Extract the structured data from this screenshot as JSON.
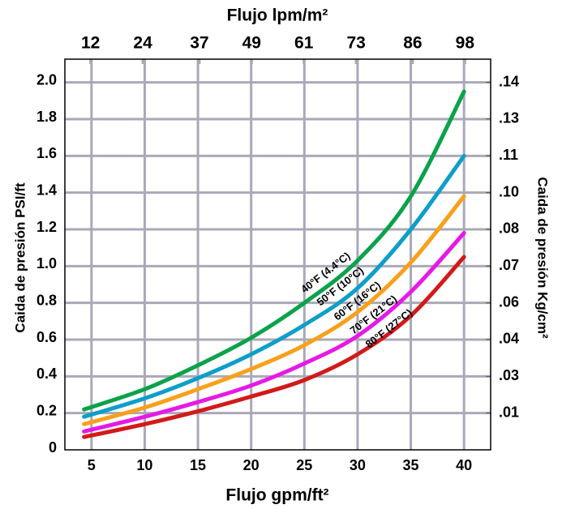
{
  "chart_data": {
    "type": "line",
    "xlabel": "Flujo gpm/ft²",
    "x2label": "Flujo lpm/m²",
    "ylabel": "Caida de presión PSI/ft",
    "y2label": "Caida de presión Kg/cm²",
    "x": [
      4.3,
      10,
      15,
      20,
      25,
      30,
      35,
      40
    ],
    "xlim": [
      2.5,
      42.5
    ],
    "xticks": [
      5,
      10,
      15,
      20,
      25,
      30,
      35,
      40
    ],
    "x2lim": [
      6.1,
      103.9
    ],
    "x2ticks": [
      12,
      24,
      37,
      49,
      61,
      73,
      86,
      98
    ],
    "ylim": [
      0,
      2.1
    ],
    "yticks": [
      0,
      0.2,
      0.4,
      0.6,
      0.8,
      {
        "value": 1,
        "label": "1.0"
      },
      1.2,
      1.4,
      1.6,
      1.8,
      {
        "value": 2,
        "label": "2.0"
      }
    ],
    "y2lim": [
      0,
      0.1476
    ],
    "y2ticks": [
      {
        "value": 0.0141,
        "label": ".01"
      },
      {
        "value": 0.0281,
        "label": ".03"
      },
      {
        "value": 0.0422,
        "label": ".04"
      },
      {
        "value": 0.0562,
        "label": ".06"
      },
      {
        "value": 0.0703,
        "label": ".07"
      },
      {
        "value": 0.0844,
        "label": ".08"
      },
      {
        "value": 0.0984,
        "label": ".10"
      },
      {
        "value": 0.1125,
        "label": ".11"
      },
      {
        "value": 0.1266,
        "label": ".13"
      },
      {
        "value": 0.1406,
        "label": ".14"
      }
    ],
    "grid": true,
    "series": [
      {
        "name": "40°F (4.4°C)",
        "color": "#0aa24a",
        "values": [
          0.22,
          0.33,
          0.46,
          0.61,
          0.8,
          1.03,
          1.38,
          1.95
        ]
      },
      {
        "name": "50°F (10°C)",
        "color": "#0d9ec9",
        "values": [
          0.18,
          0.28,
          0.39,
          0.52,
          0.68,
          0.88,
          1.2,
          1.6
        ]
      },
      {
        "name": "60°F (16°C)",
        "color": "#f9a01b",
        "values": [
          0.14,
          0.23,
          0.33,
          0.44,
          0.57,
          0.75,
          1.02,
          1.38
        ]
      },
      {
        "name": "70°F (21°C)",
        "color": "#e619e6",
        "values": [
          0.1,
          0.18,
          0.26,
          0.35,
          0.47,
          0.62,
          0.86,
          1.18
        ]
      },
      {
        "name": "80°F (27°C)",
        "color": "#d21a1a",
        "values": [
          0.07,
          0.14,
          0.21,
          0.29,
          0.38,
          0.52,
          0.73,
          1.05
        ]
      }
    ]
  }
}
